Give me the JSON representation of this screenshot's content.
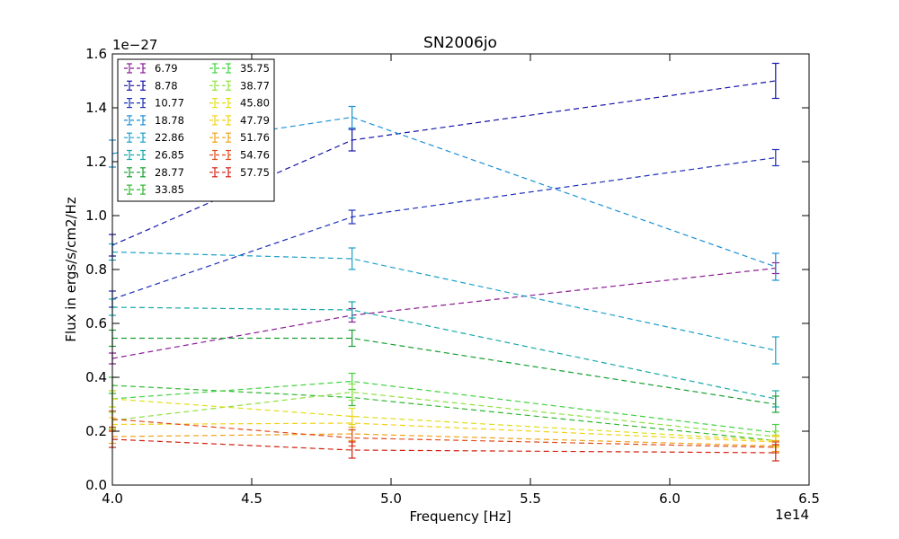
{
  "chart_data": {
    "type": "line",
    "title": "SN2006jo",
    "xlabel": "Frequency [Hz]",
    "ylabel": "Flux in ergs/s/cm2/Hz",
    "x_offset_label": "1e14",
    "y_offset_label": "1e−27",
    "xlim": [
      4.0,
      6.5
    ],
    "ylim": [
      0.0,
      1.6
    ],
    "x_ticks": [
      "4.0",
      "4.5",
      "5.0",
      "5.5",
      "6.0",
      "6.5"
    ],
    "y_ticks": [
      "0.0",
      "0.2",
      "0.4",
      "0.6",
      "0.8",
      "1.0",
      "1.2",
      "1.4",
      "1.6"
    ],
    "legend_position": "top-left",
    "grid": false,
    "x": [
      4.0,
      4.86,
      6.38
    ],
    "series": [
      {
        "name": "6.79",
        "color": "#8b1a96",
        "values": [
          0.47,
          0.63,
          0.805
        ],
        "errors": [
          0.02,
          0.025,
          0.02
        ]
      },
      {
        "name": "8.78",
        "color": "#1515a8",
        "values": [
          0.89,
          1.28,
          1.5
        ],
        "errors": [
          0.04,
          0.04,
          0.065
        ]
      },
      {
        "name": "10.77",
        "color": "#1c2fb8",
        "values": [
          0.69,
          0.995,
          1.215
        ],
        "errors": [
          0.03,
          0.025,
          0.03
        ]
      },
      {
        "name": "18.78",
        "color": "#1a8fd6",
        "values": [
          1.23,
          1.365,
          0.81
        ],
        "errors": [
          0.05,
          0.04,
          0.05
        ]
      },
      {
        "name": "22.86",
        "color": "#1aa0c8",
        "values": [
          0.865,
          0.84,
          0.5
        ],
        "errors": [
          0.03,
          0.04,
          0.05
        ]
      },
      {
        "name": "26.85",
        "color": "#17a8a8",
        "values": [
          0.66,
          0.65,
          0.32
        ],
        "errors": [
          0.03,
          0.03,
          0.03
        ]
      },
      {
        "name": "28.77",
        "color": "#17a030",
        "values": [
          0.545,
          0.545,
          0.3
        ],
        "errors": [
          0.03,
          0.03,
          0.03
        ]
      },
      {
        "name": "33.85",
        "color": "#2fb82f",
        "values": [
          0.37,
          0.325,
          0.165
        ],
        "errors": [
          0.03,
          0.03,
          0.02
        ]
      },
      {
        "name": "35.75",
        "color": "#3fd23f",
        "values": [
          0.32,
          0.385,
          0.195
        ],
        "errors": [
          0.03,
          0.03,
          0.03
        ]
      },
      {
        "name": "38.77",
        "color": "#8fe040",
        "values": [
          0.24,
          0.345,
          0.18
        ],
        "errors": [
          0.03,
          0.03,
          0.02
        ]
      },
      {
        "name": "45.80",
        "color": "#dede1a",
        "values": [
          0.32,
          0.255,
          0.165
        ],
        "errors": [
          0.03,
          0.03,
          0.02
        ]
      },
      {
        "name": "47.79",
        "color": "#f2d21a",
        "values": [
          0.225,
          0.23,
          0.16
        ],
        "errors": [
          0.025,
          0.025,
          0.02
        ]
      },
      {
        "name": "51.76",
        "color": "#f0a21a",
        "values": [
          0.18,
          0.19,
          0.145
        ],
        "errors": [
          0.025,
          0.025,
          0.02
        ]
      },
      {
        "name": "54.76",
        "color": "#e04a1a",
        "values": [
          0.245,
          0.175,
          0.14
        ],
        "errors": [
          0.03,
          0.03,
          0.02
        ]
      },
      {
        "name": "57.75",
        "color": "#d42010",
        "values": [
          0.17,
          0.13,
          0.12
        ],
        "errors": [
          0.03,
          0.03,
          0.03
        ]
      }
    ]
  }
}
